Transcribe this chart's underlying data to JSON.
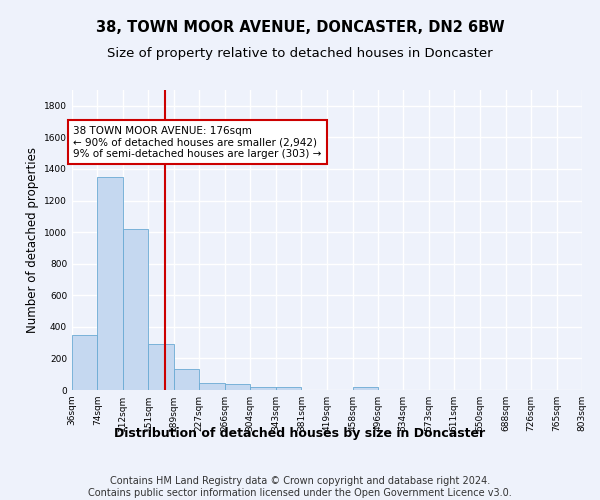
{
  "title": "38, TOWN MOOR AVENUE, DONCASTER, DN2 6BW",
  "subtitle": "Size of property relative to detached houses in Doncaster",
  "xlabel": "Distribution of detached houses by size in Doncaster",
  "ylabel": "Number of detached properties",
  "bins": [
    36,
    74,
    112,
    151,
    189,
    227,
    266,
    304,
    343,
    381,
    419,
    458,
    496,
    534,
    573,
    611,
    650,
    688,
    726,
    765,
    803
  ],
  "counts": [
    350,
    1350,
    1020,
    290,
    130,
    42,
    38,
    22,
    18,
    0,
    0,
    18,
    0,
    0,
    0,
    0,
    0,
    0,
    0,
    0
  ],
  "bar_color": "#c5d8f0",
  "bar_edge_color": "#6aaad4",
  "vline_x": 176,
  "vline_color": "#cc0000",
  "annotation_text": "38 TOWN MOOR AVENUE: 176sqm\n← 90% of detached houses are smaller (2,942)\n9% of semi-detached houses are larger (303) →",
  "annotation_box_color": "white",
  "annotation_box_edge": "#cc0000",
  "ylim": [
    0,
    1900
  ],
  "yticks": [
    0,
    200,
    400,
    600,
    800,
    1000,
    1200,
    1400,
    1600,
    1800
  ],
  "tick_labels": [
    "36sqm",
    "74sqm",
    "112sqm",
    "151sqm",
    "189sqm",
    "227sqm",
    "266sqm",
    "304sqm",
    "343sqm",
    "381sqm",
    "419sqm",
    "458sqm",
    "496sqm",
    "534sqm",
    "573sqm",
    "611sqm",
    "650sqm",
    "688sqm",
    "726sqm",
    "765sqm",
    "803sqm"
  ],
  "footer": "Contains HM Land Registry data © Crown copyright and database right 2024.\nContains public sector information licensed under the Open Government Licence v3.0.",
  "bg_color": "#eef2fb",
  "plot_bg_color": "#eef2fb",
  "grid_color": "#ffffff",
  "title_fontsize": 10.5,
  "subtitle_fontsize": 9.5,
  "ylabel_fontsize": 8.5,
  "xlabel_fontsize": 9,
  "footer_fontsize": 7,
  "tick_fontsize": 6.5,
  "annot_fontsize": 7.5
}
